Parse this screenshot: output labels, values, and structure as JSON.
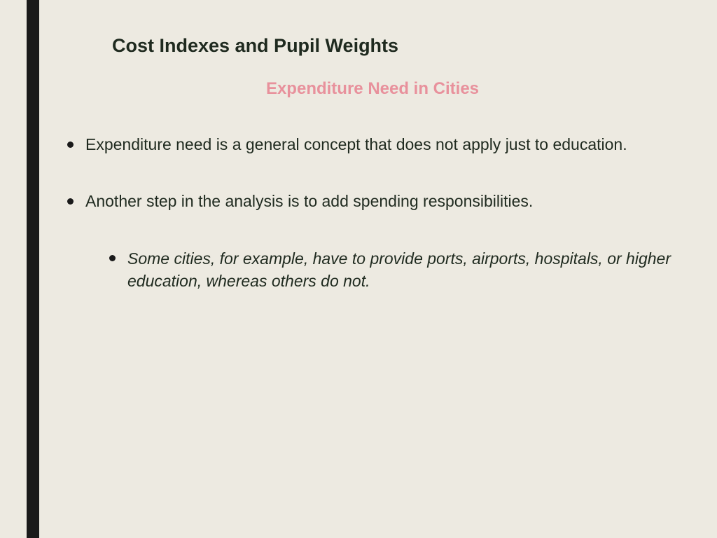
{
  "slide": {
    "background_color": "#edeae1",
    "accent_bar_color": "#1a1a1a",
    "title": "Cost Indexes and Pupil Weights",
    "title_color": "#1f2a1f",
    "title_fontsize": 27,
    "subtitle": "Expenditure Need in Cities",
    "subtitle_color": "#e8919c",
    "subtitle_fontsize": 24,
    "bullets": [
      {
        "text": "Expenditure need is a general concept that does not apply just to education.",
        "children": []
      },
      {
        "text": "Another step in the analysis is to add spending responsibilities.",
        "children": [
          {
            "text": "Some cities, for example, have to provide ports, airports, hospitals, or higher education, whereas others do not."
          }
        ]
      }
    ],
    "body_fontsize": 23,
    "body_color": "#1f2a1f",
    "bullet_marker_color": "#1a1a1a"
  }
}
